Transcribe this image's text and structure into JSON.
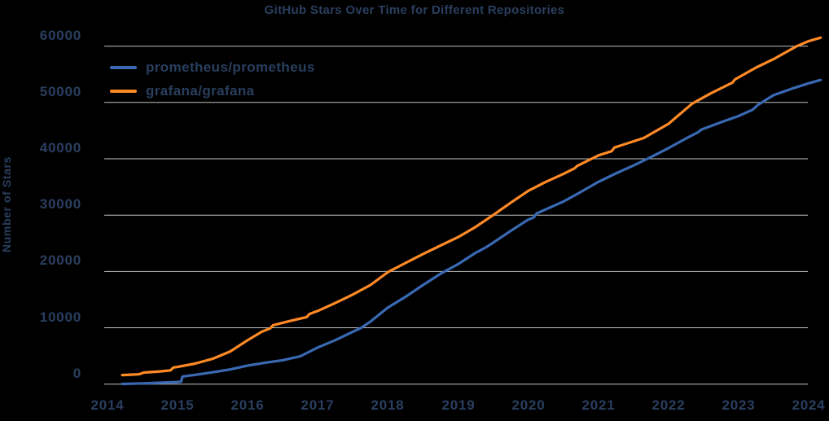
{
  "styles": {
    "background": "#000000",
    "text_color": "#2a3f5f",
    "grid_color": "#c2c2c2",
    "blue": "#3a69b4",
    "orange": "#ff8a26"
  },
  "chart_data": {
    "type": "line",
    "title": "GitHub Stars Over Time for Different Repositories",
    "xlabel": "",
    "ylabel": "Number of Stars",
    "x_tick_labels": [
      "2014",
      "2015",
      "2016",
      "2017",
      "2018",
      "2019",
      "2020",
      "2021",
      "2022",
      "2023",
      "2024"
    ],
    "x_tick_values": [
      2014,
      2015,
      2016,
      2017,
      2018,
      2019,
      2020,
      2021,
      2022,
      2023,
      2024
    ],
    "y_tick_labels": [
      "0",
      "10000",
      "20000",
      "30000",
      "40000",
      "50000",
      "60000"
    ],
    "y_tick_values": [
      0,
      10000,
      20000,
      30000,
      40000,
      50000,
      60000
    ],
    "ylim": [
      0,
      62000
    ],
    "xlim": [
      2013.95,
      2024.3
    ],
    "grid": "horizontal-only",
    "legend_position": "upper-left",
    "series": [
      {
        "name": "prometheus/prometheus",
        "color": "#3a69b4",
        "points": [
          [
            2014.21,
            30
          ],
          [
            2014.5,
            130
          ],
          [
            2014.75,
            250
          ],
          [
            2015.0,
            380
          ],
          [
            2015.05,
            430
          ],
          [
            2015.07,
            1350
          ],
          [
            2015.25,
            1650
          ],
          [
            2015.5,
            2100
          ],
          [
            2015.75,
            2600
          ],
          [
            2016.0,
            3300
          ],
          [
            2016.25,
            3800
          ],
          [
            2016.5,
            4250
          ],
          [
            2016.75,
            4950
          ],
          [
            2017.0,
            6500
          ],
          [
            2017.25,
            7800
          ],
          [
            2017.5,
            9300
          ],
          [
            2017.62,
            10000
          ],
          [
            2017.75,
            11100
          ],
          [
            2018.0,
            13600
          ],
          [
            2018.25,
            15500
          ],
          [
            2018.5,
            17600
          ],
          [
            2018.75,
            19600
          ],
          [
            2019.0,
            21300
          ],
          [
            2019.25,
            23300
          ],
          [
            2019.4,
            24300
          ],
          [
            2019.5,
            25100
          ],
          [
            2019.75,
            27200
          ],
          [
            2020.0,
            29200
          ],
          [
            2020.08,
            29600
          ],
          [
            2020.12,
            30300
          ],
          [
            2020.5,
            32400
          ],
          [
            2020.75,
            34100
          ],
          [
            2021.0,
            35900
          ],
          [
            2021.25,
            37400
          ],
          [
            2021.5,
            38800
          ],
          [
            2021.75,
            40300
          ],
          [
            2022.0,
            41900
          ],
          [
            2022.25,
            43600
          ],
          [
            2022.42,
            44700
          ],
          [
            2022.47,
            45200
          ],
          [
            2022.75,
            46500
          ],
          [
            2023.0,
            47600
          ],
          [
            2023.2,
            48700
          ],
          [
            2023.28,
            49600
          ],
          [
            2023.5,
            51300
          ],
          [
            2023.75,
            52400
          ],
          [
            2024.0,
            53400
          ],
          [
            2024.17,
            54000
          ]
        ]
      },
      {
        "name": "grafana/grafana",
        "color": "#ff8a26",
        "points": [
          [
            2014.21,
            1600
          ],
          [
            2014.45,
            1750
          ],
          [
            2014.52,
            2050
          ],
          [
            2014.75,
            2250
          ],
          [
            2014.9,
            2450
          ],
          [
            2014.94,
            2950
          ],
          [
            2015.0,
            3050
          ],
          [
            2015.25,
            3650
          ],
          [
            2015.5,
            4500
          ],
          [
            2015.75,
            5800
          ],
          [
            2016.0,
            7800
          ],
          [
            2016.2,
            9300
          ],
          [
            2016.32,
            9900
          ],
          [
            2016.36,
            10450
          ],
          [
            2016.6,
            11200
          ],
          [
            2016.84,
            11900
          ],
          [
            2016.88,
            12450
          ],
          [
            2017.0,
            13000
          ],
          [
            2017.25,
            14400
          ],
          [
            2017.5,
            15900
          ],
          [
            2017.75,
            17600
          ],
          [
            2018.0,
            19900
          ],
          [
            2018.25,
            21500
          ],
          [
            2018.5,
            23100
          ],
          [
            2018.75,
            24600
          ],
          [
            2019.0,
            26100
          ],
          [
            2019.25,
            27900
          ],
          [
            2019.5,
            30000
          ],
          [
            2019.75,
            32200
          ],
          [
            2020.0,
            34300
          ],
          [
            2020.25,
            35900
          ],
          [
            2020.5,
            37300
          ],
          [
            2020.66,
            38300
          ],
          [
            2020.7,
            38750
          ],
          [
            2021.0,
            40600
          ],
          [
            2021.19,
            41350
          ],
          [
            2021.23,
            42000
          ],
          [
            2021.5,
            43100
          ],
          [
            2021.65,
            43700
          ],
          [
            2022.0,
            46200
          ],
          [
            2022.34,
            49800
          ],
          [
            2022.6,
            51600
          ],
          [
            2022.91,
            53500
          ],
          [
            2022.95,
            54100
          ],
          [
            2023.25,
            56200
          ],
          [
            2023.5,
            57700
          ],
          [
            2023.83,
            60000
          ],
          [
            2024.0,
            60900
          ],
          [
            2024.17,
            61500
          ]
        ]
      }
    ]
  }
}
